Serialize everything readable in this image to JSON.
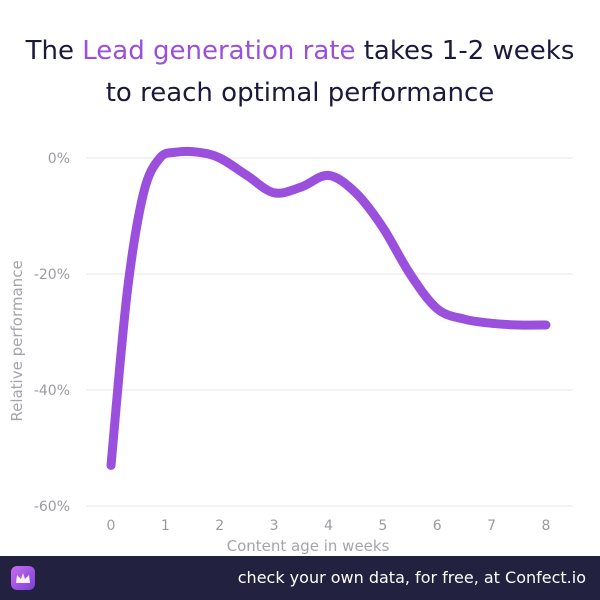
{
  "title": {
    "before": "The ",
    "highlight": "Lead generation rate",
    "after": " takes 1-2 weeks",
    "line2": "to reach optimal performance"
  },
  "colors": {
    "line": "#9b4fdd",
    "title": "#1b1a3d",
    "highlight": "#9b4fdd",
    "footer_bg": "#22213f",
    "grid": "#e6e6ea",
    "tick": "#9a9aa2"
  },
  "chart_data": {
    "type": "line",
    "xlabel": "Content age in weeks",
    "ylabel": "Relative performance",
    "x_ticks": [
      "0",
      "1",
      "2",
      "3",
      "4",
      "5",
      "6",
      "7",
      "8"
    ],
    "y_ticks": [
      "0%",
      "-20%",
      "-40%",
      "-60%"
    ],
    "y_tick_values": [
      0,
      -20,
      -40,
      -60
    ],
    "xlim": [
      0,
      8
    ],
    "ylim": [
      -60,
      0
    ],
    "grid": true,
    "series": [
      {
        "x": [
          0,
          0.3,
          0.6,
          0.9,
          1.2,
          1.6,
          2,
          2.5,
          3,
          3.5,
          4,
          4.5,
          5,
          5.5,
          6,
          6.5,
          7,
          7.5,
          8
        ],
        "y": [
          -53,
          -23,
          -6,
          0,
          1,
          1,
          0,
          -3,
          -6,
          -5,
          -3,
          -6,
          -12,
          -20,
          -26,
          -27.8,
          -28.5,
          -28.8,
          -28.8
        ]
      }
    ]
  },
  "footer": {
    "logo_icon": "confect-crown-icon",
    "text": "check your own data, for free, at Confect.io"
  }
}
